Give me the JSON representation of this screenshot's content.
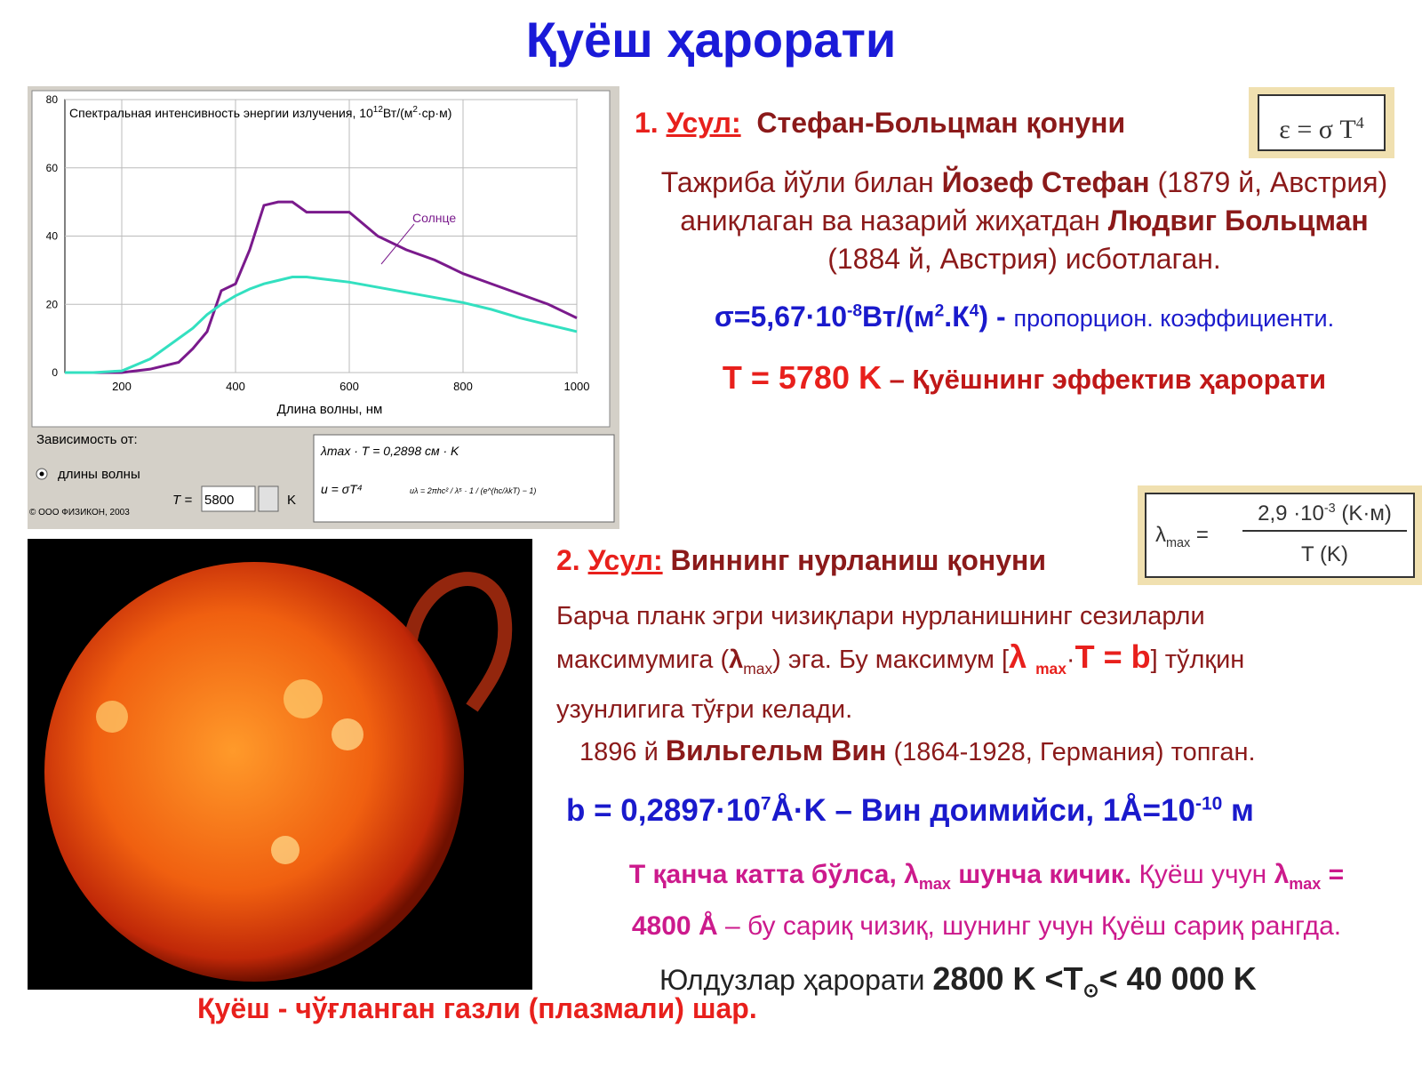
{
  "title": "Қуёш ҳарорати",
  "chart_data": {
    "type": "line",
    "y_label": "Спектральная интенсивность энергии излучения, 10",
    "y_label_sup": "12",
    "y_label_unit": "Вт/(м",
    "y_label_sup2": "2",
    "y_label_end": "·ср·м)",
    "x_label": "Длина волны, нм",
    "annotation": "Солнце",
    "x": [
      100,
      150,
      200,
      250,
      300,
      325,
      350,
      375,
      400,
      425,
      450,
      475,
      500,
      525,
      550,
      600,
      650,
      700,
      750,
      800,
      850,
      900,
      950,
      1000
    ],
    "series": [
      {
        "name": "Солнце",
        "color": "#7a1a8c",
        "values": [
          0,
          0,
          0,
          1,
          3,
          7,
          12,
          24,
          26,
          36,
          49,
          50,
          50,
          47,
          47,
          47,
          40,
          36,
          33,
          29,
          26,
          23,
          20,
          16
        ]
      },
      {
        "color": "#33e0c0",
        "values": [
          0,
          0,
          0.5,
          4,
          10,
          13,
          17,
          20,
          22.5,
          24.5,
          26,
          27,
          28,
          28,
          27.5,
          26.5,
          25,
          23.5,
          22,
          20.5,
          18.5,
          16,
          14,
          12
        ]
      }
    ],
    "xlim": [
      100,
      1000
    ],
    "ylim": [
      0,
      80
    ],
    "xticks": [
      200,
      400,
      600,
      800,
      1000
    ],
    "yticks": [
      0,
      20,
      40,
      60,
      80
    ],
    "grid": true,
    "panel": {
      "depends": "Зависимость от:",
      "option": "длины волны",
      "t_label": "T =",
      "t_value": "5800",
      "t_unit": "K",
      "wien": "λmax · T = 0,2898 см · K",
      "stefan": "u = σT⁴",
      "planck": "uλ = 2πhc² / λ⁵ · 1 / (e^(hc/λkT) − 1)",
      "copyright": "© ООО ФИЗИКОН, 2003"
    }
  },
  "method1": {
    "num": "1.",
    "word": "Усул:",
    "name": "Стефан-Больцман қонуни",
    "formula": [
      "ε = σ T",
      "4"
    ],
    "text": [
      "Тажриба йўли билан ",
      "Йозеф Стефан",
      " (1879 й, Австрия) аниқлаган ва назарий жиҳатдан ",
      "Людвиг Больцман",
      " (1884 й, Австрия) исботлаган."
    ],
    "sigma": [
      "σ=5,67·10",
      "-8",
      "Вт/(м",
      "2",
      ".К",
      "4",
      ") - ",
      "пропорцион. коэффициенти."
    ],
    "teff": [
      "T = 5780 K",
      " – Қуёшнинг эффектив ҳарорати"
    ]
  },
  "method2": {
    "num": "2.",
    "word": "Усул:",
    "name": "Виннинг нурланиш қонуни",
    "formula": [
      "λ",
      "max",
      " =",
      "2,9 ·10",
      "-3",
      " (K·м)",
      "T (K)"
    ],
    "text": [
      "Барча планк эгри чизиқлари нурланишнинг сезиларли максимумига (",
      "λ",
      "max",
      ") эга. Бу максимум [",
      "λ ",
      "max",
      "·",
      "T = b",
      "] тўлқин узунлигига тўғри келади."
    ],
    "wien": [
      "1896 й ",
      "Вильгельм Вин",
      " (1864-1928, Германия) топган."
    ],
    "b": [
      "b = 0,2897·10",
      "7",
      "Å·K – Вин доимийси, 1Å=10",
      "-10",
      " м"
    ],
    "note": [
      "T қанча катта бўлса, ",
      "λ",
      "max",
      " шунча кичик.",
      " Қуёш учун ",
      "λ",
      "max",
      " =",
      "4800 Å",
      " – бу сариқ чизиқ, шунинг учун Қуёш сариқ рангда."
    ],
    "stars": [
      "Юлдузлар ҳарорати ",
      "2800 K <T",
      "⊙",
      "< 40 000 K"
    ]
  },
  "caption": "Қуёш - чўғланган газли (плазмали) шар."
}
